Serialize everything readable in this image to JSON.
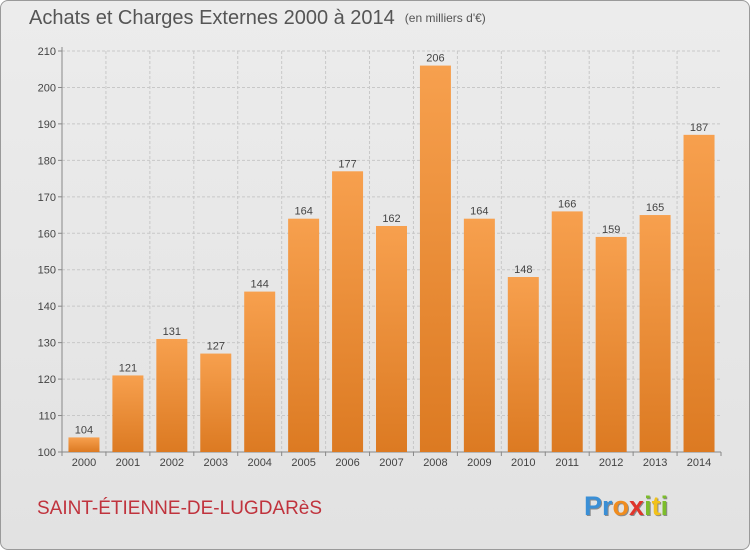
{
  "header": {
    "title": "Achats et Charges Externes 2000 à 2014",
    "subtitle": "(en milliers d'€)"
  },
  "footer": {
    "location": "SAINT-ÉTIENNE-DE-LUGDARèS",
    "logo_letters": [
      {
        "text": "P",
        "color": "#3a8fd6"
      },
      {
        "text": "r",
        "color": "#3a8fd6"
      },
      {
        "text": "o",
        "color": "#f08c1e"
      },
      {
        "text": "x",
        "color": "#e0352b"
      },
      {
        "text": "i",
        "color": "#7cbd2b"
      },
      {
        "text": "t",
        "color": "#f2c21b"
      },
      {
        "text": "i",
        "color": "#7cbd2b"
      }
    ]
  },
  "colors": {
    "bar_top": "#f7a04e",
    "bar_bottom": "#dc7a22",
    "grid": "#c8c8c8",
    "axis": "#888888"
  },
  "chart_data": {
    "type": "bar",
    "categories": [
      "2000",
      "2001",
      "2002",
      "2003",
      "2004",
      "2005",
      "2006",
      "2007",
      "2008",
      "2009",
      "2010",
      "2011",
      "2012",
      "2013",
      "2014"
    ],
    "values": [
      104,
      121,
      131,
      127,
      144,
      164,
      177,
      162,
      206,
      164,
      148,
      166,
      159,
      165,
      187
    ],
    "yticks": [
      100,
      110,
      120,
      130,
      140,
      150,
      160,
      170,
      180,
      190,
      200,
      210
    ],
    "ylim": [
      100,
      210
    ],
    "grid": true
  }
}
